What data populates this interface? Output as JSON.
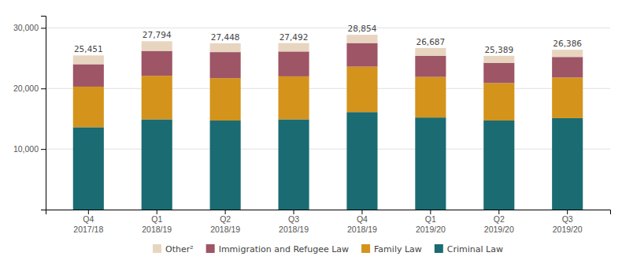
{
  "chart_data": {
    "type": "bar",
    "stacked": true,
    "categories": [
      "Q4\n2017/18",
      "Q1\n2018/19",
      "Q2\n2018/19",
      "Q3\n2018/19",
      "Q4\n2018/19",
      "Q1\n2019/20",
      "Q2\n2019/20",
      "Q3\n2019/20"
    ],
    "series": [
      {
        "name": "Criminal Law",
        "color": "#1a6b72",
        "values": [
          13600,
          14900,
          14700,
          14900,
          16100,
          15200,
          14700,
          15100
        ]
      },
      {
        "name": "Family Law",
        "color": "#d4931b",
        "values": [
          6700,
          7200,
          7000,
          7100,
          7500,
          6700,
          6200,
          6700
        ]
      },
      {
        "name": "Immigration and Refugee Law",
        "color": "#9e5565",
        "values": [
          3700,
          4100,
          4300,
          4100,
          3900,
          3500,
          3300,
          3400
        ]
      },
      {
        "name": "Other²",
        "color": "#e8d5c0",
        "values": [
          1451,
          1594,
          1448,
          1392,
          1354,
          1287,
          1189,
          1186
        ]
      }
    ],
    "totals": [
      25451,
      27794,
      27448,
      27492,
      28854,
      26687,
      25389,
      26386
    ],
    "total_labels": [
      "25,451",
      "27,794",
      "27,448",
      "27,492",
      "28,854",
      "26,687",
      "25,389",
      "26,386"
    ],
    "ylim": [
      0,
      32000
    ],
    "yticks": [
      {
        "value": 10000,
        "label": "10,000"
      },
      {
        "value": 20000,
        "label": "20,000"
      },
      {
        "value": 30000,
        "label": "30,000"
      }
    ],
    "grid": true,
    "legend": "bottom"
  }
}
